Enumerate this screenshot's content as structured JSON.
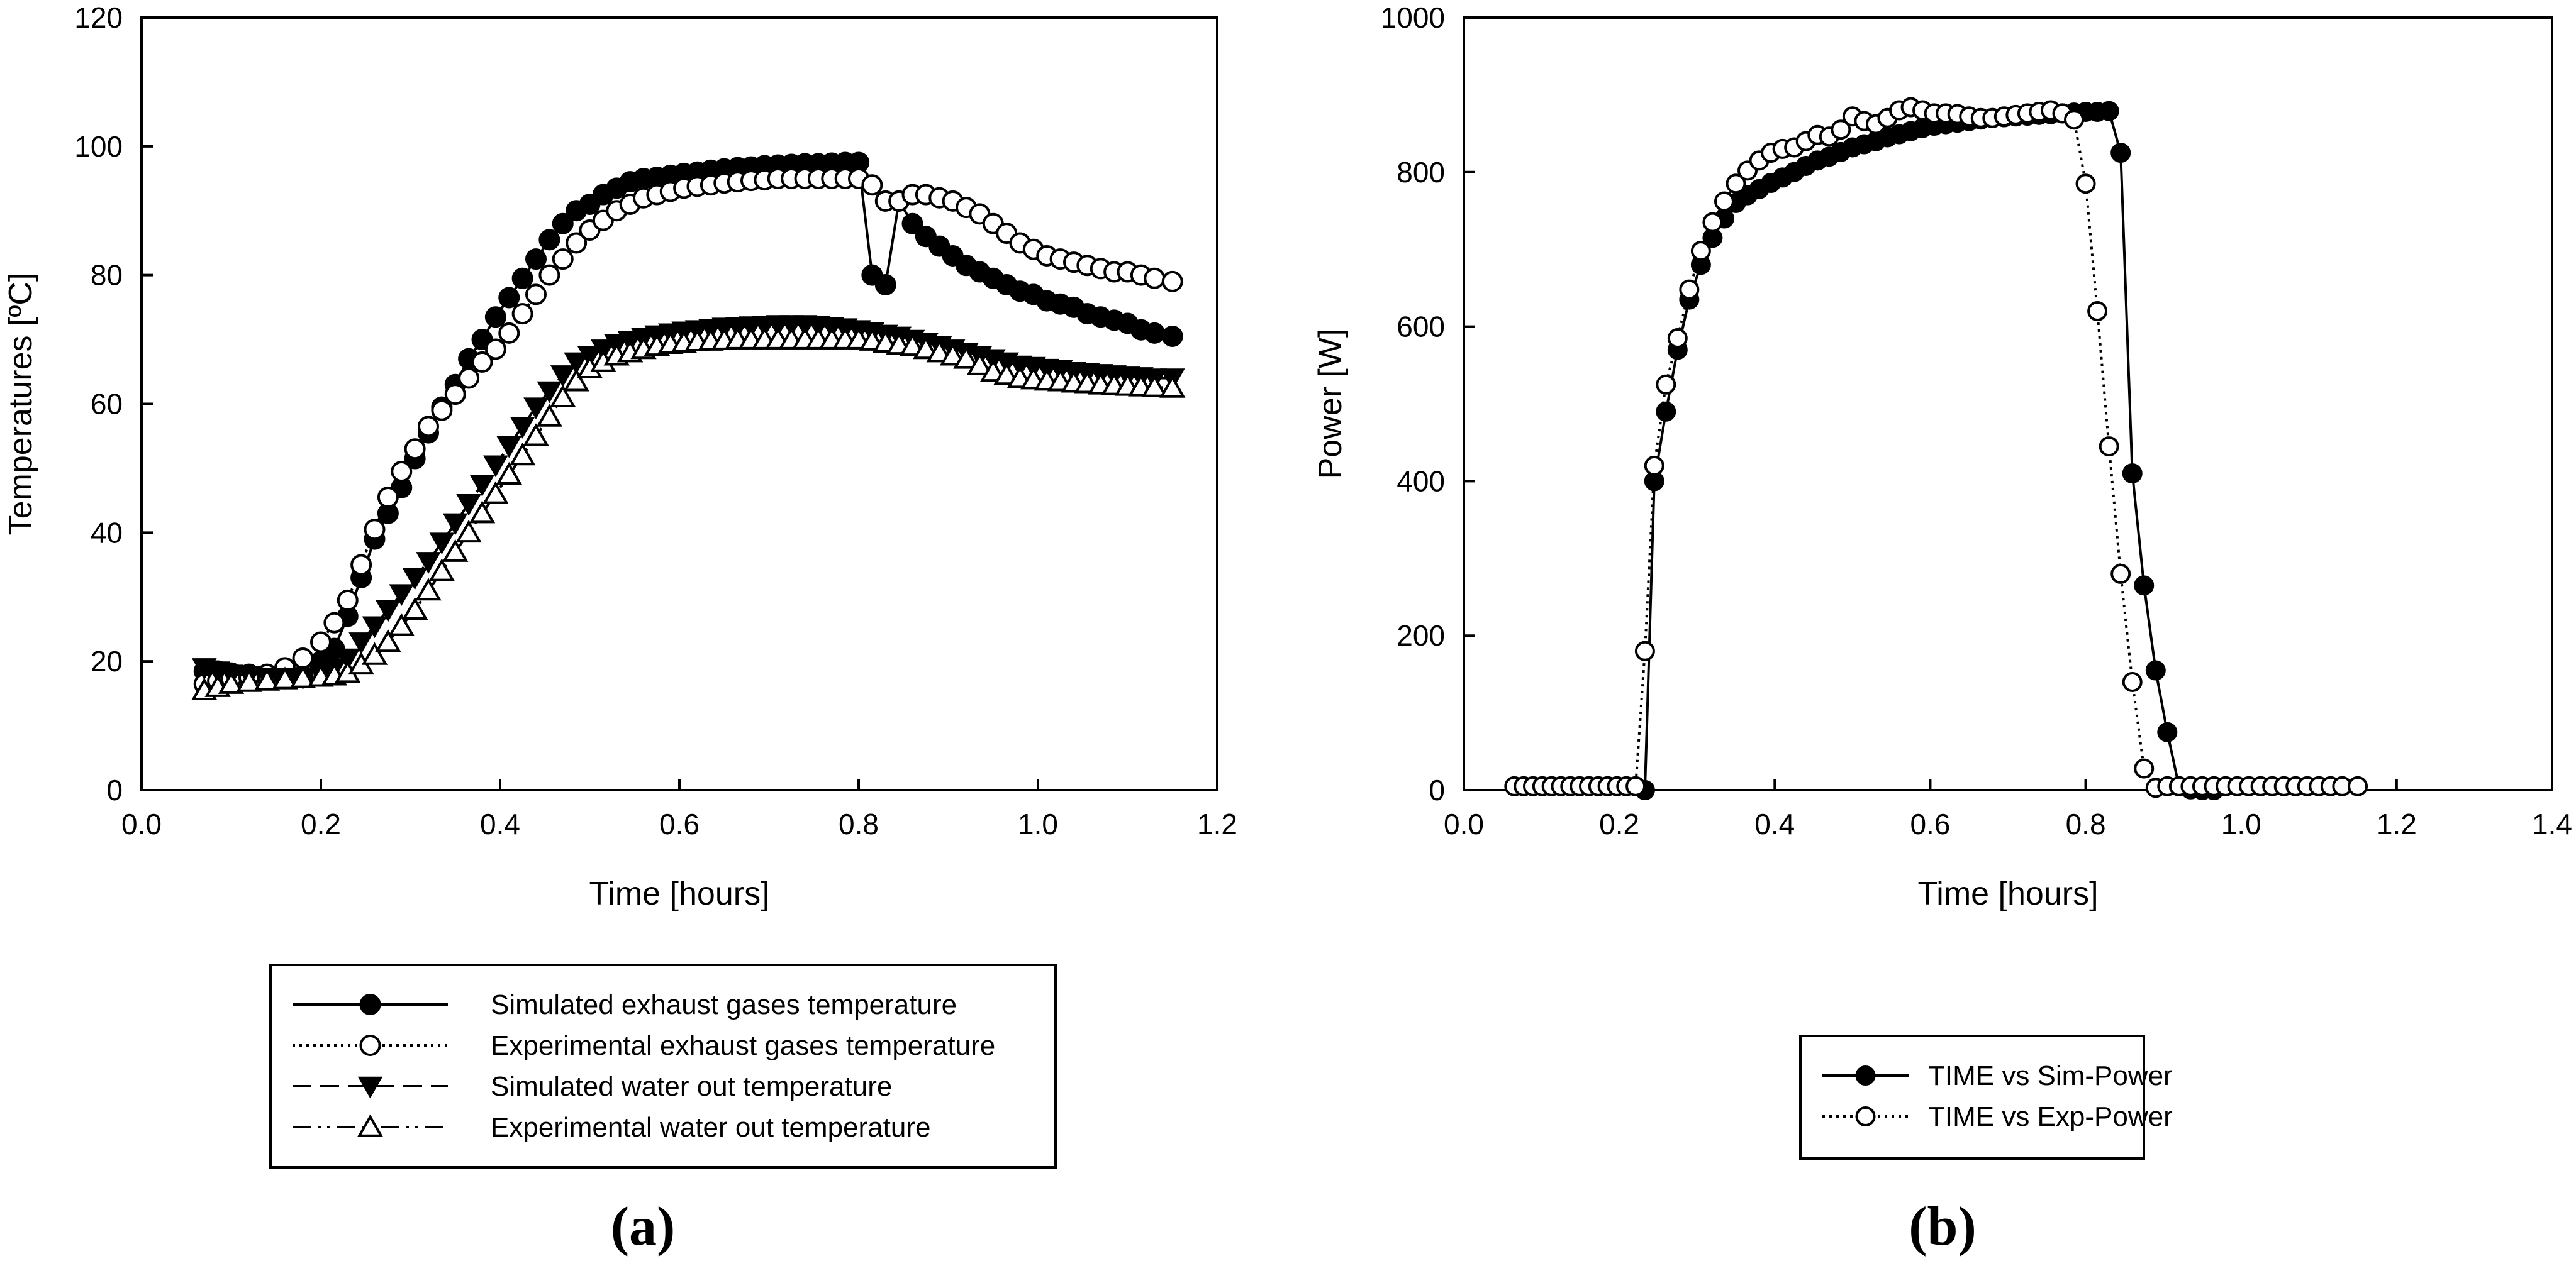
{
  "chart_data": [
    {
      "type": "line",
      "panel_label": "(a)",
      "xlabel": "Time [hours]",
      "ylabel": "Temperatures [ºC]",
      "xlim": [
        0.0,
        1.2
      ],
      "ylim": [
        0,
        120
      ],
      "x_ticks": [
        "0.0",
        "0.2",
        "0.4",
        "0.6",
        "0.8",
        "1.0",
        "1.2"
      ],
      "y_ticks": [
        "0",
        "20",
        "40",
        "60",
        "80",
        "100",
        "120"
      ],
      "grid": false,
      "legend_position": "below",
      "series": [
        {
          "name": "Simulated exhaust gases temperature",
          "marker": "filled-circle",
          "line": "solid",
          "x": [
            0.07,
            0.085,
            0.1,
            0.12,
            0.14,
            0.16,
            0.18,
            0.2,
            0.215,
            0.23,
            0.245,
            0.26,
            0.275,
            0.29,
            0.305,
            0.32,
            0.335,
            0.35,
            0.365,
            0.38,
            0.395,
            0.41,
            0.425,
            0.44,
            0.455,
            0.47,
            0.485,
            0.5,
            0.515,
            0.53,
            0.545,
            0.56,
            0.575,
            0.59,
            0.605,
            0.62,
            0.635,
            0.65,
            0.665,
            0.68,
            0.695,
            0.71,
            0.725,
            0.74,
            0.755,
            0.77,
            0.785,
            0.8,
            0.815,
            0.83,
            0.845,
            0.86,
            0.875,
            0.89,
            0.905,
            0.92,
            0.935,
            0.95,
            0.965,
            0.98,
            0.995,
            1.01,
            1.025,
            1.04,
            1.055,
            1.07,
            1.085,
            1.1,
            1.115,
            1.13,
            1.15
          ],
          "y": [
            18.5,
            18.5,
            18.2,
            18.0,
            17.8,
            17.6,
            17.8,
            20.0,
            22.0,
            27.0,
            33.0,
            39.0,
            43.0,
            47.0,
            51.5,
            55.5,
            59.5,
            63.0,
            67.0,
            70.0,
            73.5,
            76.5,
            79.5,
            82.5,
            85.5,
            88.0,
            90.0,
            91.0,
            92.5,
            93.5,
            94.5,
            95.0,
            95.2,
            95.5,
            95.8,
            96.0,
            96.3,
            96.5,
            96.7,
            96.8,
            97.0,
            97.1,
            97.2,
            97.3,
            97.3,
            97.4,
            97.5,
            97.5,
            80.0,
            78.5,
            91.5,
            88.0,
            86.0,
            84.5,
            83.0,
            81.5,
            80.5,
            79.5,
            78.5,
            77.5,
            77.0,
            76.0,
            75.5,
            75.0,
            74.0,
            73.5,
            73.0,
            72.5,
            71.5,
            71.0,
            70.5
          ]
        },
        {
          "name": "Experimental exhaust gases temperature",
          "marker": "open-circle",
          "line": "dotted",
          "x": [
            0.07,
            0.085,
            0.1,
            0.12,
            0.14,
            0.16,
            0.18,
            0.2,
            0.215,
            0.23,
            0.245,
            0.26,
            0.275,
            0.29,
            0.305,
            0.32,
            0.335,
            0.35,
            0.365,
            0.38,
            0.395,
            0.41,
            0.425,
            0.44,
            0.455,
            0.47,
            0.485,
            0.5,
            0.515,
            0.53,
            0.545,
            0.56,
            0.575,
            0.59,
            0.605,
            0.62,
            0.635,
            0.65,
            0.665,
            0.68,
            0.695,
            0.71,
            0.725,
            0.74,
            0.755,
            0.77,
            0.785,
            0.8,
            0.815,
            0.83,
            0.845,
            0.86,
            0.875,
            0.89,
            0.905,
            0.92,
            0.935,
            0.95,
            0.965,
            0.98,
            0.995,
            1.01,
            1.025,
            1.04,
            1.055,
            1.07,
            1.085,
            1.1,
            1.115,
            1.13,
            1.15
          ],
          "y": [
            16.5,
            17.0,
            17.3,
            17.5,
            18.0,
            19.0,
            20.5,
            23.0,
            26.0,
            29.5,
            35.0,
            40.5,
            45.5,
            49.5,
            53.0,
            56.5,
            59.0,
            61.5,
            64.0,
            66.5,
            68.5,
            71.0,
            74.0,
            77.0,
            80.0,
            82.5,
            85.0,
            87.0,
            88.5,
            90.0,
            91.0,
            92.0,
            92.5,
            93.0,
            93.5,
            93.8,
            94.0,
            94.3,
            94.5,
            94.7,
            94.8,
            95.0,
            95.0,
            95.0,
            95.0,
            95.0,
            95.0,
            95.0,
            94.0,
            91.5,
            91.5,
            92.5,
            92.5,
            92.0,
            91.5,
            90.5,
            89.5,
            88.0,
            86.5,
            85.0,
            84.0,
            83.0,
            82.5,
            82.0,
            81.5,
            81.0,
            80.5,
            80.5,
            80.0,
            79.5,
            79.0
          ]
        },
        {
          "name": "Simulated water out temperature",
          "marker": "filled-triangle-down",
          "line": "dashed",
          "x": [
            0.07,
            0.085,
            0.1,
            0.12,
            0.14,
            0.16,
            0.18,
            0.2,
            0.215,
            0.23,
            0.245,
            0.26,
            0.275,
            0.29,
            0.305,
            0.32,
            0.335,
            0.35,
            0.365,
            0.38,
            0.395,
            0.41,
            0.425,
            0.44,
            0.455,
            0.47,
            0.485,
            0.5,
            0.515,
            0.53,
            0.545,
            0.56,
            0.575,
            0.59,
            0.605,
            0.62,
            0.635,
            0.65,
            0.665,
            0.68,
            0.695,
            0.71,
            0.725,
            0.74,
            0.755,
            0.77,
            0.785,
            0.8,
            0.815,
            0.83,
            0.845,
            0.86,
            0.875,
            0.89,
            0.905,
            0.92,
            0.935,
            0.95,
            0.965,
            0.98,
            0.995,
            1.01,
            1.025,
            1.04,
            1.055,
            1.07,
            1.085,
            1.1,
            1.115,
            1.13,
            1.15
          ],
          "y": [
            19.0,
            18.5,
            18.0,
            17.8,
            17.5,
            17.5,
            17.5,
            18.0,
            19.0,
            20.5,
            23.0,
            25.5,
            28.0,
            30.5,
            33.0,
            35.5,
            38.5,
            41.5,
            44.5,
            47.5,
            50.5,
            53.5,
            56.5,
            59.5,
            62.0,
            64.5,
            66.5,
            67.5,
            68.5,
            69.3,
            69.8,
            70.3,
            70.7,
            71.0,
            71.3,
            71.5,
            71.7,
            71.9,
            72.0,
            72.1,
            72.2,
            72.3,
            72.3,
            72.3,
            72.2,
            72.0,
            71.8,
            71.5,
            71.2,
            70.8,
            70.5,
            70.0,
            69.5,
            69.0,
            68.5,
            68.0,
            67.5,
            67.0,
            66.5,
            66.0,
            65.8,
            65.5,
            65.3,
            65.0,
            64.8,
            64.7,
            64.5,
            64.3,
            64.2,
            64.0,
            64.0
          ]
        },
        {
          "name": "Experimental water out temperature",
          "marker": "open-triangle-up",
          "line": "dash-dot-dot",
          "x": [
            0.07,
            0.085,
            0.1,
            0.12,
            0.14,
            0.16,
            0.18,
            0.2,
            0.215,
            0.23,
            0.245,
            0.26,
            0.275,
            0.29,
            0.305,
            0.32,
            0.335,
            0.35,
            0.365,
            0.38,
            0.395,
            0.41,
            0.425,
            0.44,
            0.455,
            0.47,
            0.485,
            0.5,
            0.515,
            0.53,
            0.545,
            0.56,
            0.575,
            0.59,
            0.605,
            0.62,
            0.635,
            0.65,
            0.665,
            0.68,
            0.695,
            0.71,
            0.725,
            0.74,
            0.755,
            0.77,
            0.785,
            0.8,
            0.815,
            0.83,
            0.845,
            0.86,
            0.875,
            0.89,
            0.905,
            0.92,
            0.935,
            0.95,
            0.965,
            0.98,
            0.995,
            1.01,
            1.025,
            1.04,
            1.055,
            1.07,
            1.085,
            1.1,
            1.115,
            1.13,
            1.15
          ],
          "y": [
            15.5,
            16.0,
            16.5,
            16.8,
            17.0,
            17.2,
            17.4,
            17.6,
            17.8,
            18.2,
            19.5,
            21.0,
            23.0,
            25.5,
            28.0,
            31.0,
            34.0,
            37.0,
            40.0,
            43.0,
            46.0,
            49.0,
            52.0,
            55.0,
            58.0,
            61.0,
            63.5,
            65.5,
            66.5,
            67.5,
            68.0,
            68.5,
            69.0,
            69.3,
            69.5,
            69.7,
            69.8,
            69.9,
            70.0,
            70.0,
            70.0,
            70.0,
            70.0,
            70.0,
            70.0,
            70.0,
            70.0,
            70.0,
            69.8,
            69.5,
            69.2,
            69.0,
            68.5,
            68.0,
            67.5,
            67.0,
            66.0,
            65.0,
            64.5,
            64.0,
            63.8,
            63.6,
            63.5,
            63.3,
            63.2,
            63.0,
            62.9,
            62.8,
            62.7,
            62.6,
            62.5
          ]
        }
      ]
    },
    {
      "type": "line",
      "panel_label": "(b)",
      "xlabel": "Time [hours]",
      "ylabel": "Power [W]",
      "xlim": [
        0.0,
        1.4
      ],
      "ylim": [
        0,
        1000
      ],
      "x_ticks": [
        "0.0",
        "0.2",
        "0.4",
        "0.6",
        "0.8",
        "1.0",
        "1.2",
        "1.4"
      ],
      "y_ticks": [
        "0",
        "200",
        "400",
        "600",
        "800",
        "1000"
      ],
      "grid": false,
      "legend_position": "below",
      "series": [
        {
          "name": "TIME vs Sim-Power",
          "marker": "filled-circle",
          "line": "solid",
          "x": [
            0.233,
            0.245,
            0.26,
            0.275,
            0.29,
            0.305,
            0.32,
            0.335,
            0.35,
            0.365,
            0.38,
            0.395,
            0.41,
            0.425,
            0.44,
            0.455,
            0.47,
            0.485,
            0.5,
            0.515,
            0.53,
            0.545,
            0.56,
            0.575,
            0.59,
            0.605,
            0.62,
            0.635,
            0.65,
            0.665,
            0.68,
            0.695,
            0.71,
            0.725,
            0.74,
            0.755,
            0.77,
            0.785,
            0.8,
            0.815,
            0.83,
            0.845,
            0.86,
            0.875,
            0.89,
            0.905,
            0.92,
            0.935,
            0.95,
            0.965
          ],
          "y": [
            0,
            400,
            490,
            570,
            635,
            680,
            715,
            740,
            760,
            770,
            778,
            786,
            793,
            800,
            808,
            815,
            820,
            826,
            832,
            836,
            840,
            845,
            849,
            853,
            857,
            860,
            862,
            864,
            866,
            868,
            870,
            871,
            872,
            873,
            874,
            875,
            876,
            877,
            878,
            878,
            879,
            825,
            410,
            265,
            155,
            75,
            5,
            1,
            0,
            0
          ]
        },
        {
          "name": "TIME vs Exp-Power",
          "marker": "open-circle",
          "line": "dotted",
          "x": [
            0.065,
            0.077,
            0.089,
            0.101,
            0.113,
            0.125,
            0.137,
            0.149,
            0.161,
            0.173,
            0.185,
            0.197,
            0.209,
            0.221,
            0.233,
            0.245,
            0.26,
            0.275,
            0.29,
            0.305,
            0.32,
            0.335,
            0.35,
            0.365,
            0.38,
            0.395,
            0.41,
            0.425,
            0.44,
            0.455,
            0.47,
            0.485,
            0.5,
            0.515,
            0.53,
            0.545,
            0.56,
            0.575,
            0.59,
            0.605,
            0.62,
            0.635,
            0.65,
            0.665,
            0.68,
            0.695,
            0.71,
            0.725,
            0.74,
            0.755,
            0.77,
            0.785,
            0.8,
            0.815,
            0.83,
            0.845,
            0.86,
            0.875,
            0.89,
            0.905,
            0.92,
            0.935,
            0.95,
            0.965,
            0.98,
            0.995,
            1.01,
            1.025,
            1.04,
            1.055,
            1.07,
            1.085,
            1.1,
            1.115,
            1.13,
            1.15
          ],
          "y": [
            5,
            5,
            5,
            5,
            5,
            5,
            5,
            5,
            5,
            5,
            5,
            5,
            5,
            5,
            180,
            420,
            525,
            585,
            648,
            698,
            735,
            762,
            785,
            802,
            815,
            825,
            830,
            832,
            840,
            848,
            846,
            855,
            872,
            866,
            862,
            870,
            880,
            884,
            880,
            876,
            876,
            875,
            872,
            870,
            870,
            872,
            874,
            876,
            878,
            880,
            876,
            868,
            785,
            620,
            445,
            280,
            140,
            28,
            3,
            5,
            5,
            5,
            5,
            5,
            5,
            5,
            5,
            5,
            5,
            5,
            5,
            5,
            5,
            5,
            5,
            5
          ]
        }
      ]
    }
  ]
}
